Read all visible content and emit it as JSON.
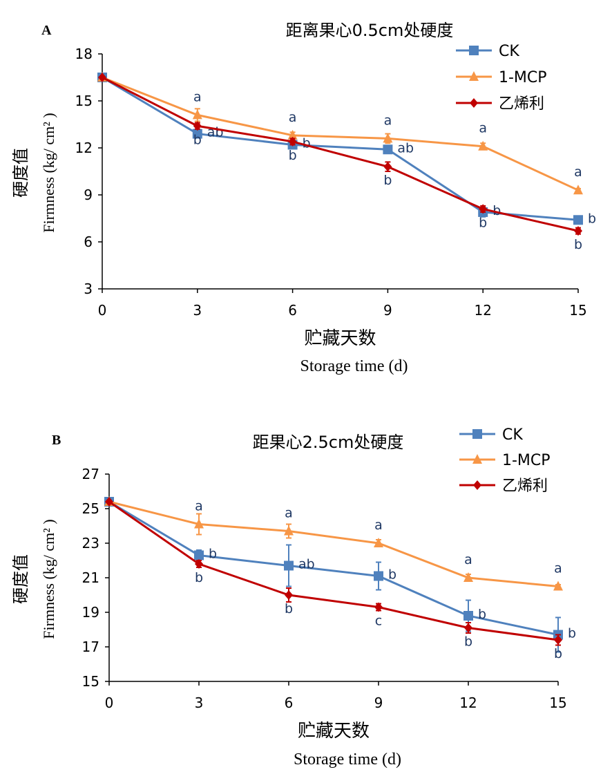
{
  "chart_data": [
    {
      "type": "line",
      "panel_label": "A",
      "title": "距离果心0.5cm处硬度",
      "xlabel_cn": "贮藏天数",
      "xlabel_en": "Storage time (d)",
      "ylabel_cn": "硬度值",
      "ylabel_en": "Firmness (kg/ cm² )",
      "x": [
        0,
        3,
        6,
        9,
        12,
        15
      ],
      "x_ticks": [
        "0",
        "3",
        "6",
        "9",
        "12",
        "15"
      ],
      "ylim": [
        3,
        18
      ],
      "y_ticks": [
        "3",
        "6",
        "9",
        "12",
        "15",
        "18"
      ],
      "y_tick_values": [
        3,
        6,
        9,
        12,
        15,
        18
      ],
      "legend_position": "top-right",
      "series": [
        {
          "name": "CK",
          "color": "#4F81BD",
          "marker": "square",
          "values": [
            16.5,
            12.9,
            12.2,
            11.9,
            7.9,
            7.4
          ],
          "errors": [
            0,
            0.2,
            0.2,
            0.2,
            0.3,
            0
          ],
          "letters": [
            "",
            "ab",
            "b",
            "ab",
            "b",
            "b"
          ]
        },
        {
          "name": "1-MCP",
          "color": "#F79646",
          "marker": "triangle",
          "values": [
            16.5,
            14.1,
            12.8,
            12.6,
            12.1,
            9.3
          ],
          "errors": [
            0,
            0.4,
            0.2,
            0.3,
            0.2,
            0.1
          ],
          "letters": [
            "",
            "a",
            "a",
            "a",
            "a",
            "a"
          ]
        },
        {
          "name": "乙烯利",
          "color": "#C00000",
          "marker": "diamond",
          "values": [
            16.5,
            13.4,
            12.4,
            10.8,
            8.1,
            6.7
          ],
          "errors": [
            0,
            0.2,
            0.2,
            0.3,
            0.2,
            0.2
          ],
          "letters": [
            "",
            "b",
            "b",
            "b",
            "b",
            "b"
          ]
        }
      ]
    },
    {
      "type": "line",
      "panel_label": "B",
      "title": "距果心2.5cm处硬度",
      "xlabel_cn": "贮藏天数",
      "xlabel_en": "Storage time (d)",
      "ylabel_cn": "硬度值",
      "ylabel_en": "Firmness (kg/ cm² )",
      "x": [
        0,
        3,
        6,
        9,
        12,
        15
      ],
      "x_ticks": [
        "0",
        "3",
        "6",
        "9",
        "12",
        "15"
      ],
      "ylim": [
        15,
        27
      ],
      "y_ticks": [
        "15",
        "17",
        "19",
        "21",
        "23",
        "25",
        "27"
      ],
      "y_tick_values": [
        15,
        17,
        19,
        21,
        23,
        25,
        27
      ],
      "legend_position": "top-right",
      "series": [
        {
          "name": "CK",
          "color": "#4F81BD",
          "marker": "square",
          "values": [
            25.4,
            22.3,
            21.7,
            21.1,
            18.8,
            17.7
          ],
          "errors": [
            0,
            0.3,
            1.2,
            0.8,
            0.9,
            1.0
          ],
          "letters": [
            "",
            "b",
            "ab",
            "b",
            "b",
            "b"
          ]
        },
        {
          "name": "1-MCP",
          "color": "#F79646",
          "marker": "triangle",
          "values": [
            25.4,
            24.1,
            23.7,
            23.0,
            21.0,
            20.5
          ],
          "errors": [
            0,
            0.6,
            0.4,
            0.2,
            0.2,
            0.1
          ],
          "letters": [
            "",
            "a",
            "a",
            "a",
            "a",
            "a"
          ]
        },
        {
          "name": "乙烯利",
          "color": "#C00000",
          "marker": "diamond",
          "values": [
            25.4,
            21.8,
            20.0,
            19.3,
            18.1,
            17.4
          ],
          "errors": [
            0,
            0.2,
            0.4,
            0.2,
            0.3,
            0.3
          ],
          "letters": [
            "",
            "b",
            "b",
            "c",
            "b",
            "b"
          ]
        }
      ]
    }
  ]
}
